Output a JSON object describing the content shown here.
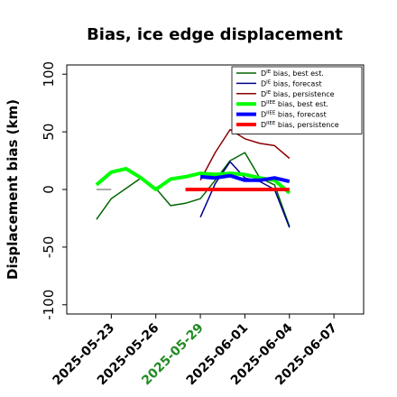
{
  "chart_data": {
    "type": "line",
    "title": "Bias, ice edge displacement",
    "ylabel": "Displacement bias (km)",
    "xlabel": "",
    "ylim": [
      -108,
      108
    ],
    "xlim": [
      "2025-05-20",
      "2025-06-09"
    ],
    "yticks": [
      -100,
      -50,
      0,
      50,
      100
    ],
    "xticks": [
      {
        "date": "2025-05-23",
        "label": "2025-05-23",
        "color": "#000000"
      },
      {
        "date": "2025-05-26",
        "label": "2025-05-26",
        "color": "#000000"
      },
      {
        "date": "2025-05-29",
        "label": "2025-05-29",
        "color": "#228b22"
      },
      {
        "date": "2025-06-01",
        "label": "2025-06-01",
        "color": "#000000"
      },
      {
        "date": "2025-06-04",
        "label": "2025-06-04",
        "color": "#000000"
      },
      {
        "date": "2025-06-07",
        "label": "2025-06-07",
        "color": "#000000"
      }
    ],
    "grid": false,
    "legend_position": "top-right",
    "series": [
      {
        "name": "D^IE bias, best est.",
        "label_main": "D",
        "label_sup": "IE",
        "label_rest": " bias, best est.",
        "color": "#006400",
        "width": 1.5,
        "marker": "none",
        "points": [
          [
            "2025-05-22",
            -26
          ],
          [
            "2025-05-23",
            -8
          ],
          [
            "2025-05-24",
            1
          ],
          [
            "2025-05-25",
            10
          ],
          [
            "2025-05-26",
            1
          ],
          [
            "2025-05-27",
            -14
          ],
          [
            "2025-05-28",
            -12
          ],
          [
            "2025-05-29",
            -8
          ],
          [
            "2025-05-30",
            8
          ],
          [
            "2025-05-31",
            25
          ],
          [
            "2025-06-01",
            32
          ],
          [
            "2025-06-02",
            10
          ],
          [
            "2025-06-03",
            4
          ],
          [
            "2025-06-04",
            -32
          ]
        ]
      },
      {
        "name": "D^IE bias, forecast",
        "label_main": "D",
        "label_sup": "IE",
        "label_rest": " bias, forecast",
        "color": "#00008b",
        "width": 1.5,
        "marker": "none",
        "points": [
          [
            "2025-05-29",
            -24
          ],
          [
            "2025-05-30",
            5
          ],
          [
            "2025-05-31",
            24
          ],
          [
            "2025-06-01",
            10
          ],
          [
            "2025-06-02",
            7
          ],
          [
            "2025-06-03",
            0
          ],
          [
            "2025-06-04",
            -33
          ]
        ]
      },
      {
        "name": "D^IE bias, persistence",
        "label_main": "D",
        "label_sup": "IE",
        "label_rest": " bias, persistence",
        "color": "#8b0000",
        "width": 1.5,
        "marker": "none",
        "points": [
          [
            "2025-05-29",
            8
          ],
          [
            "2025-05-30",
            32
          ],
          [
            "2025-05-31",
            52
          ],
          [
            "2025-06-01",
            44
          ],
          [
            "2025-06-02",
            40
          ],
          [
            "2025-06-03",
            38
          ],
          [
            "2025-06-04",
            27
          ]
        ]
      },
      {
        "name": "D^IIEE bias, best est.",
        "label_main": "D",
        "label_sup": "IIEE",
        "label_rest": " bias, best est.",
        "color": "#00ff00",
        "width": 4,
        "marker": "none",
        "points": [
          [
            "2025-05-22",
            4
          ],
          [
            "2025-05-23",
            15
          ],
          [
            "2025-05-24",
            18
          ],
          [
            "2025-05-25",
            10
          ],
          [
            "2025-05-26",
            0
          ],
          [
            "2025-05-27",
            9
          ],
          [
            "2025-05-28",
            11
          ],
          [
            "2025-05-29",
            14
          ],
          [
            "2025-05-30",
            13
          ],
          [
            "2025-05-31",
            14
          ],
          [
            "2025-06-01",
            13
          ],
          [
            "2025-06-02",
            10
          ],
          [
            "2025-06-03",
            8
          ],
          [
            "2025-06-04",
            -3
          ]
        ]
      },
      {
        "name": "D^IIEE bias, forecast",
        "label_main": "D",
        "label_sup": "IIEE",
        "label_rest": " bias, forecast",
        "color": "#0000ff",
        "width": 4,
        "marker": "none",
        "points": [
          [
            "2025-05-29",
            11
          ],
          [
            "2025-05-30",
            10
          ],
          [
            "2025-05-31",
            12
          ],
          [
            "2025-06-01",
            8
          ],
          [
            "2025-06-02",
            8
          ],
          [
            "2025-06-03",
            10
          ],
          [
            "2025-06-04",
            7
          ]
        ]
      },
      {
        "name": "D^IIEE bias, persistence",
        "label_main": "D",
        "label_sup": "IIEE",
        "label_rest": " bias, persistence",
        "color": "#ff0000",
        "width": 4,
        "marker": "none",
        "points": [
          [
            "2025-05-28",
            0
          ],
          [
            "2025-06-04",
            0
          ]
        ]
      }
    ],
    "annotations": [
      {
        "type": "hline",
        "color": "#555555",
        "width": 1,
        "points": [
          [
            "2025-05-22",
            0
          ],
          [
            "2025-05-23",
            0
          ]
        ]
      },
      {
        "type": "hline",
        "color": "#555555",
        "width": 1,
        "points": [
          [
            "2025-05-28",
            0
          ],
          [
            "2025-05-29",
            0
          ]
        ]
      }
    ]
  }
}
